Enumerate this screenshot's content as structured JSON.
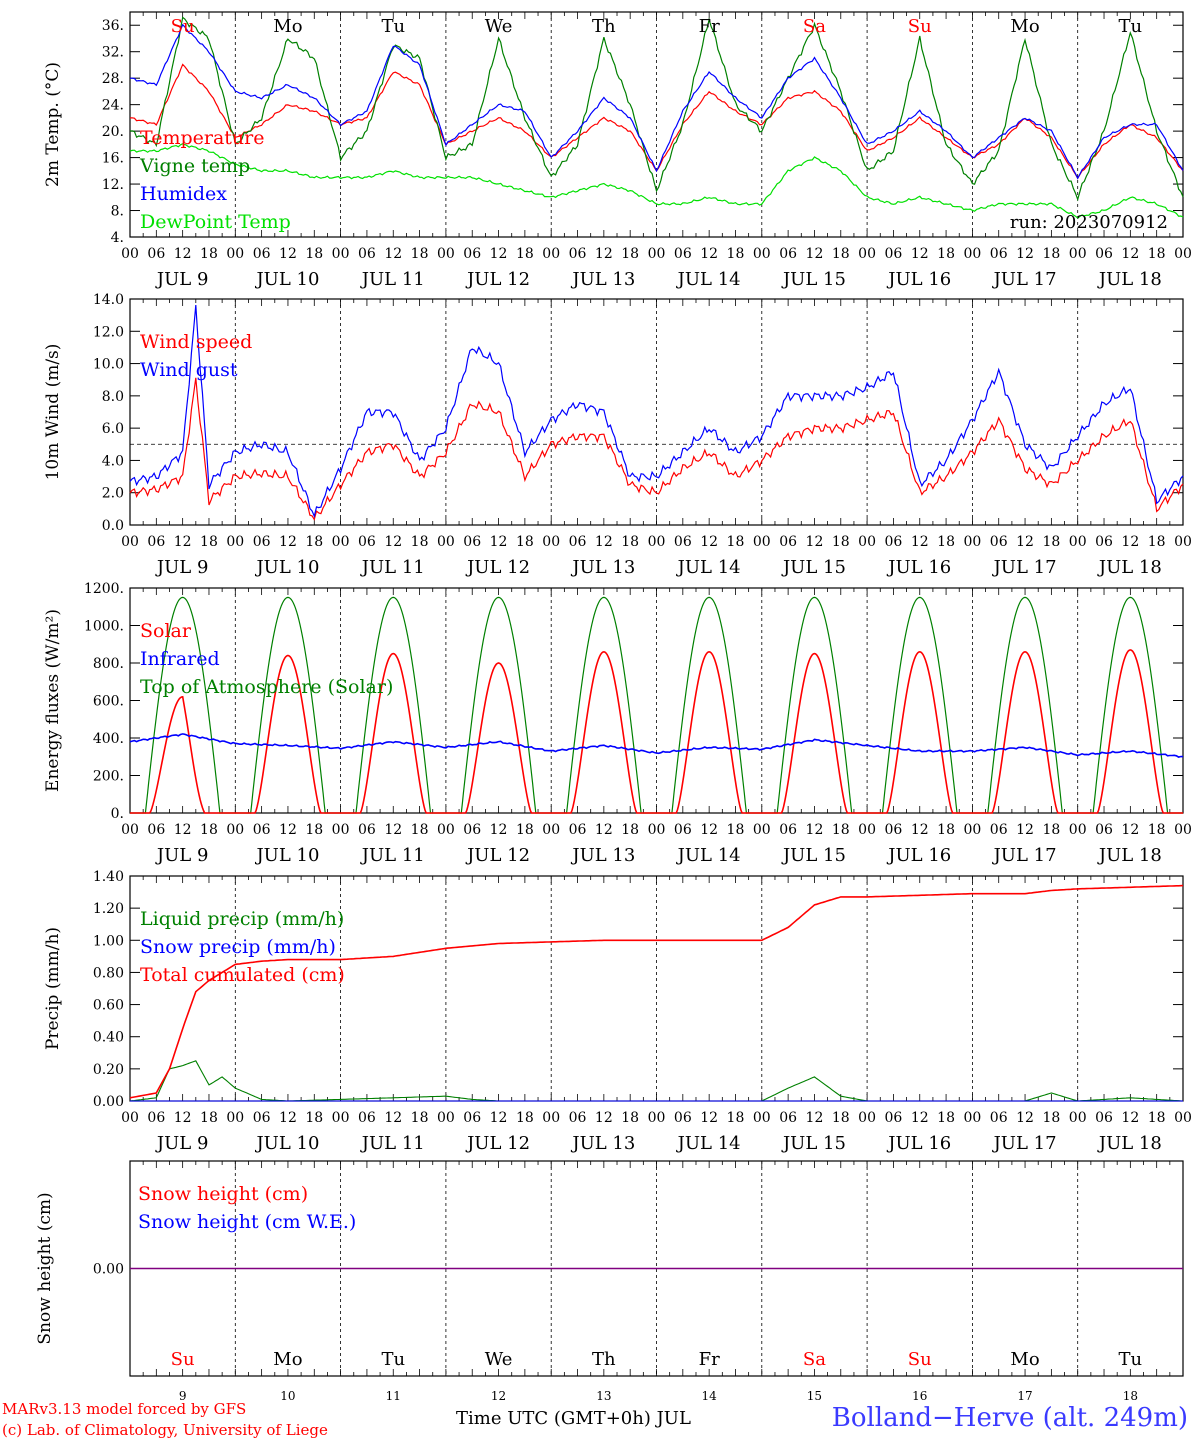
{
  "x_axis": {
    "hour_ticks": [
      "00",
      "06",
      "12",
      "18"
    ],
    "end_tick": "00",
    "dates": [
      "JUL  9",
      "JUL 10",
      "JUL 11",
      "JUL 12",
      "JUL 13",
      "JUL 14",
      "JUL 15",
      "JUL 16",
      "JUL 17",
      "JUL 18"
    ],
    "weekdays": [
      "Su",
      "Mo",
      "Tu",
      "We",
      "Th",
      "Fr",
      "Sa",
      "Su",
      "Mo",
      "Tu"
    ],
    "weekday_colors": [
      "#ff0000",
      "#000000",
      "#000000",
      "#000000",
      "#000000",
      "#000000",
      "#ff0000",
      "#ff0000",
      "#000000",
      "#000000"
    ],
    "day_numbers": [
      "9",
      "10",
      "11",
      "12",
      "13",
      "14",
      "15",
      "16",
      "17",
      "18"
    ]
  },
  "footer": {
    "model_line": "MARv3.13 model forced by GFS",
    "copyright_line": "(c) Lab. of Climatology, University of Liege",
    "time_axis_label": "Time UTC (GMT+0h) JUL",
    "station": "Bolland−Herve (alt. 249m)"
  },
  "colors": {
    "red": "#ff0000",
    "green": "#008000",
    "blue": "#0000ff",
    "lightgreen": "#00e000",
    "purple": "#800080"
  },
  "chart_data": [
    {
      "type": "line",
      "id": "temperature",
      "ylabel": "2m Temp. (°C)",
      "ylim": [
        4,
        38
      ],
      "ytick_labels": [
        "4.",
        "8.",
        "12.",
        "16.",
        "20.",
        "24.",
        "28.",
        "32.",
        "36."
      ],
      "run_label": "run: 2023070912",
      "x_hours": [
        0,
        6,
        12,
        18,
        24,
        30,
        36,
        42,
        48,
        54,
        60,
        66,
        72,
        78,
        84,
        90,
        96,
        102,
        108,
        114,
        120,
        126,
        132,
        138,
        144,
        150,
        156,
        162,
        168,
        174,
        180,
        186,
        192,
        198,
        204,
        210,
        216,
        222,
        228,
        234,
        240
      ],
      "series": [
        {
          "name": "Temperature",
          "color": "#ff0000",
          "values": [
            22,
            21,
            30,
            26,
            19,
            21,
            24,
            23,
            21,
            22,
            29,
            27,
            18,
            20,
            22,
            20,
            16,
            19,
            22,
            20,
            14,
            21,
            26,
            23,
            21,
            25,
            26,
            23,
            17,
            19,
            22,
            19,
            16,
            18,
            22,
            19,
            13,
            18,
            21,
            19,
            14
          ]
        },
        {
          "name": "Vigne temp",
          "color": "#008000",
          "values": [
            20,
            18,
            37,
            34,
            18,
            22,
            34,
            31,
            16,
            20,
            33,
            31,
            16,
            18,
            34,
            22,
            13,
            18,
            34,
            24,
            11,
            21,
            37,
            24,
            20,
            28,
            36,
            26,
            14,
            17,
            34,
            18,
            12,
            17,
            34,
            18,
            10,
            20,
            35,
            20,
            10
          ]
        },
        {
          "name": "Humidex",
          "color": "#0000ff",
          "values": [
            28,
            27,
            36,
            32,
            26,
            25,
            27,
            25,
            21,
            23,
            33,
            30,
            18,
            21,
            24,
            23,
            16,
            20,
            25,
            22,
            14,
            23,
            29,
            25,
            22,
            28,
            31,
            25,
            18,
            20,
            23,
            20,
            16,
            19,
            22,
            20,
            13,
            19,
            21,
            21,
            14
          ]
        },
        {
          "name": "DewPoint Temp",
          "color": "#00e000",
          "values": [
            17,
            17,
            18,
            17,
            15,
            14,
            14,
            13,
            13,
            13,
            14,
            13,
            13,
            13,
            12,
            11,
            10,
            11,
            12,
            11,
            9,
            9,
            10,
            9,
            9,
            14,
            16,
            14,
            10,
            9,
            10,
            9,
            8,
            9,
            9,
            9,
            7,
            8,
            10,
            9,
            7
          ]
        }
      ]
    },
    {
      "type": "line",
      "id": "wind",
      "ylabel": "10m Wind (m/s)",
      "ylim": [
        0,
        14
      ],
      "ytick_labels": [
        "0.0",
        "2.0",
        "4.0",
        "6.0",
        "8.0",
        "10.0",
        "12.0",
        "14.0"
      ],
      "reference_line": 5,
      "x_hours": [
        0,
        6,
        12,
        15,
        18,
        24,
        30,
        36,
        42,
        48,
        54,
        60,
        66,
        72,
        78,
        84,
        90,
        96,
        102,
        108,
        114,
        120,
        126,
        132,
        138,
        144,
        150,
        156,
        162,
        168,
        174,
        180,
        186,
        192,
        198,
        204,
        210,
        216,
        222,
        228,
        234,
        240
      ],
      "series": [
        {
          "name": "Wind speed",
          "color": "#ff0000",
          "values": [
            2.0,
            2.2,
            3.0,
            9.0,
            1.5,
            3.0,
            3.2,
            3.0,
            0.4,
            2.5,
            4.5,
            5.0,
            3.0,
            4.5,
            7.5,
            7.0,
            3.0,
            5.0,
            5.5,
            5.5,
            2.5,
            2.0,
            3.5,
            4.5,
            3.0,
            4.0,
            5.5,
            6.0,
            6.0,
            6.5,
            7.0,
            2.0,
            3.0,
            4.5,
            6.5,
            3.5,
            2.5,
            4.0,
            5.5,
            6.5,
            1.0,
            2.5
          ]
        },
        {
          "name": "Wind gust",
          "color": "#0000ff",
          "values": [
            2.7,
            3.0,
            4.5,
            13.5,
            2.5,
            4.5,
            5.0,
            4.5,
            0.6,
            3.5,
            7.0,
            7.0,
            4.0,
            6.0,
            11.0,
            10.0,
            4.5,
            6.5,
            7.5,
            7.0,
            3.0,
            3.0,
            4.5,
            6.0,
            4.5,
            5.5,
            8.0,
            8.0,
            8.0,
            8.5,
            9.5,
            2.5,
            4.0,
            6.5,
            9.5,
            5.0,
            3.5,
            5.5,
            7.5,
            8.5,
            1.5,
            3.0
          ]
        }
      ]
    },
    {
      "type": "line",
      "id": "energy",
      "ylabel": "Energy fluxes (W/m²)",
      "ylim": [
        0,
        1200
      ],
      "ytick_labels": [
        "0.",
        "200.",
        "400.",
        "600.",
        "800.",
        "1000.",
        "1200."
      ],
      "solar_peaks": [
        620,
        840,
        850,
        800,
        860,
        860,
        850,
        860,
        860,
        870
      ],
      "toa_peak": 1150,
      "infrared": {
        "x_hours": [
          0,
          12,
          24,
          36,
          48,
          60,
          72,
          84,
          96,
          108,
          120,
          132,
          144,
          156,
          168,
          180,
          192,
          204,
          216,
          228,
          240
        ],
        "values": [
          380,
          420,
          370,
          360,
          345,
          380,
          350,
          380,
          330,
          360,
          320,
          350,
          340,
          390,
          360,
          330,
          330,
          350,
          310,
          330,
          300
        ]
      },
      "series": [
        {
          "name": "Solar",
          "color": "#ff0000"
        },
        {
          "name": "Infrared",
          "color": "#0000ff"
        },
        {
          "name": "Top of Atmosphere (Solar)",
          "color": "#008000"
        }
      ]
    },
    {
      "type": "line",
      "id": "precip",
      "ylabel": "Precip (mm/h)",
      "ylim": [
        0,
        1.4
      ],
      "ytick_labels": [
        "0.00",
        "0.20",
        "0.40",
        "0.60",
        "0.80",
        "1.00",
        "1.20",
        "1.40"
      ],
      "series": [
        {
          "name": "Liquid precip (mm/h)",
          "color": "#008000",
          "x_hours": [
            0,
            6,
            9,
            12,
            15,
            18,
            21,
            24,
            30,
            36,
            48,
            60,
            72,
            78,
            84,
            96,
            108,
            120,
            132,
            144,
            150,
            156,
            162,
            168,
            180,
            192,
            204,
            210,
            216,
            228,
            240
          ],
          "values": [
            0,
            0.02,
            0.2,
            0.22,
            0.25,
            0.1,
            0.15,
            0.08,
            0.01,
            0,
            0.01,
            0.02,
            0.03,
            0.01,
            0,
            0,
            0,
            0,
            0,
            0,
            0.08,
            0.15,
            0.03,
            0,
            0,
            0,
            0,
            0.05,
            0,
            0.02,
            0
          ]
        },
        {
          "name": "Snow precip (mm/h)",
          "color": "#0000ff",
          "x_hours": [
            0,
            240
          ],
          "values": [
            0,
            0
          ]
        },
        {
          "name": "Total cumulated (cm)",
          "color": "#ff0000",
          "x_hours": [
            0,
            6,
            9,
            12,
            15,
            18,
            21,
            24,
            30,
            36,
            48,
            60,
            72,
            84,
            96,
            108,
            120,
            132,
            144,
            150,
            156,
            162,
            168,
            180,
            192,
            204,
            210,
            216,
            228,
            240
          ],
          "values": [
            0.02,
            0.05,
            0.2,
            0.45,
            0.68,
            0.75,
            0.8,
            0.85,
            0.87,
            0.88,
            0.88,
            0.9,
            0.95,
            0.98,
            0.99,
            1.0,
            1.0,
            1.0,
            1.0,
            1.08,
            1.22,
            1.27,
            1.27,
            1.28,
            1.29,
            1.29,
            1.31,
            1.32,
            1.33,
            1.34
          ]
        }
      ]
    },
    {
      "type": "line",
      "id": "snow",
      "ylabel": "Snow height (cm)",
      "ytick_labels": [
        "0.00"
      ],
      "series": [
        {
          "name": "Snow height (cm)",
          "color": "#ff0000",
          "x_hours": [
            0,
            240
          ],
          "values": [
            0,
            0
          ]
        },
        {
          "name": "Snow height (cm W.E.)",
          "color": "#0000ff",
          "x_hours": [
            0,
            240
          ],
          "values": [
            0,
            0
          ]
        }
      ]
    }
  ]
}
